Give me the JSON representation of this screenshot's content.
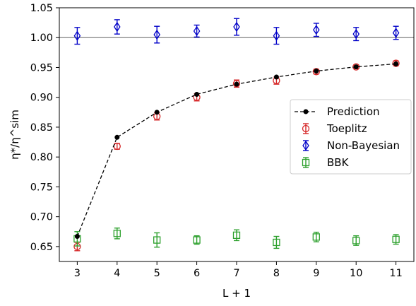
{
  "chart_data": {
    "type": "scatter",
    "title": "",
    "xlabel": "L + 1",
    "ylabel": "η*/η^sim",
    "xlim": [
      2.55,
      11.45
    ],
    "ylim": [
      0.625,
      1.05
    ],
    "xticks": [
      3,
      4,
      5,
      6,
      7,
      8,
      9,
      10,
      11
    ],
    "xtick_labels": [
      "3",
      "4",
      "5",
      "6",
      "7",
      "8",
      "9",
      "10",
      "11"
    ],
    "yticks": [
      0.65,
      0.7,
      0.75,
      0.8,
      0.85,
      0.9,
      0.95,
      1.0,
      1.05
    ],
    "ytick_labels": [
      "0.65",
      "0.70",
      "0.75",
      "0.80",
      "0.85",
      "0.90",
      "0.95",
      "1.00",
      "1.05"
    ],
    "grid": false,
    "reference_line": {
      "y": 1.0,
      "color": "#808080"
    },
    "legend_position": "center-right",
    "x": [
      3,
      4,
      5,
      6,
      7,
      8,
      9,
      10,
      11
    ],
    "series": [
      {
        "name": "Prediction",
        "kind": "line",
        "color": "#000000",
        "marker": "filled-circle",
        "linestyle": "dashed",
        "values": [
          0.667,
          0.833,
          0.875,
          0.905,
          0.922,
          0.934,
          0.944,
          0.951,
          0.956
        ]
      },
      {
        "name": "Toeplitz",
        "kind": "errorbar",
        "color": "#d62728",
        "marker": "open-circle",
        "values": [
          0.65,
          0.818,
          0.868,
          0.9,
          0.923,
          0.928,
          0.943,
          0.951,
          0.957
        ],
        "errors": [
          0.007,
          0.005,
          0.006,
          0.006,
          0.006,
          0.006,
          0.004,
          0.003,
          0.004
        ]
      },
      {
        "name": "Non-Bayesian",
        "kind": "errorbar",
        "color": "#0000c8",
        "marker": "open-diamond",
        "values": [
          1.003,
          1.018,
          1.005,
          1.011,
          1.018,
          1.003,
          1.013,
          1.006,
          1.008
        ],
        "errors": [
          0.014,
          0.012,
          0.014,
          0.01,
          0.014,
          0.014,
          0.011,
          0.011,
          0.011
        ]
      },
      {
        "name": "BBK",
        "kind": "errorbar",
        "color": "#2ca02c",
        "marker": "open-square",
        "values": [
          0.663,
          0.672,
          0.661,
          0.661,
          0.669,
          0.657,
          0.666,
          0.66,
          0.662
        ],
        "errors": [
          0.012,
          0.009,
          0.012,
          0.007,
          0.009,
          0.01,
          0.008,
          0.008,
          0.008
        ]
      }
    ]
  }
}
